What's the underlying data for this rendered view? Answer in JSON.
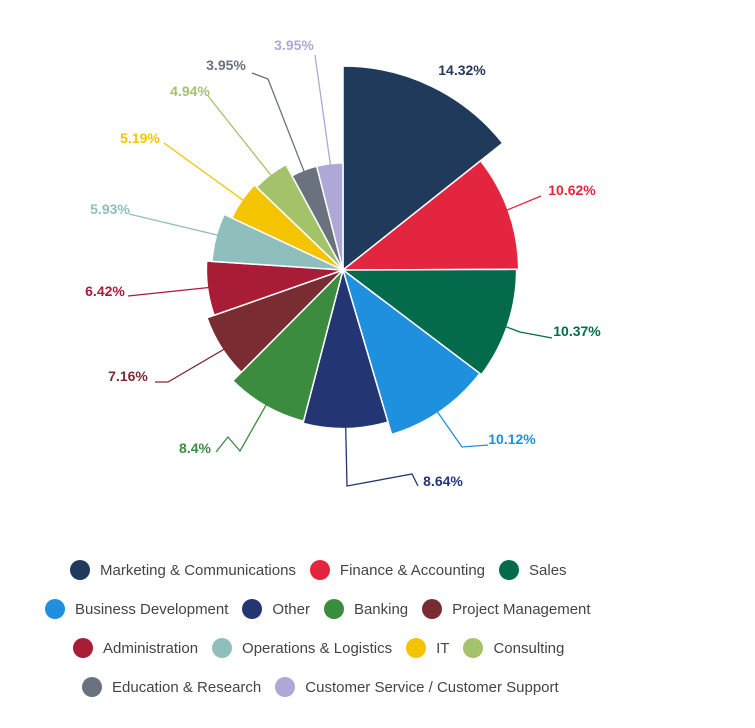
{
  "chart_data": {
    "type": "pie",
    "series": [
      {
        "name": "Marketing & Communications",
        "value": 14.32,
        "label": "14.32%",
        "color": "#1f3a5a"
      },
      {
        "name": "Finance & Accounting",
        "value": 10.62,
        "label": "10.62%",
        "color": "#e4253f"
      },
      {
        "name": "Sales",
        "value": 10.37,
        "label": "10.37%",
        "color": "#036b4c"
      },
      {
        "name": "Business Development",
        "value": 10.12,
        "label": "10.12%",
        "color": "#1e90dd"
      },
      {
        "name": "Other",
        "value": 8.64,
        "label": "8.64%",
        "color": "#243574"
      },
      {
        "name": "Banking",
        "value": 8.4,
        "label": "8.4%",
        "color": "#3c8c3f"
      },
      {
        "name": "Project Management",
        "value": 7.16,
        "label": "7.16%",
        "color": "#7a2c33"
      },
      {
        "name": "Administration",
        "value": 6.42,
        "label": "6.42%",
        "color": "#a81c36"
      },
      {
        "name": "Operations & Logistics",
        "value": 5.93,
        "label": "5.93%",
        "color": "#8ebfbd"
      },
      {
        "name": "IT",
        "value": 5.19,
        "label": "5.19%",
        "color": "#f5c400"
      },
      {
        "name": "Consulting",
        "value": 4.94,
        "label": "4.94%",
        "color": "#a4c26a"
      },
      {
        "name": "Education & Research",
        "value": 3.95,
        "label": "3.95%",
        "color": "#6a7280"
      },
      {
        "name": "Customer Service / Customer Support",
        "value": 3.95,
        "label": "3.95%",
        "color": "#ada8d6"
      }
    ],
    "legend_position": "bottom",
    "title": ""
  }
}
